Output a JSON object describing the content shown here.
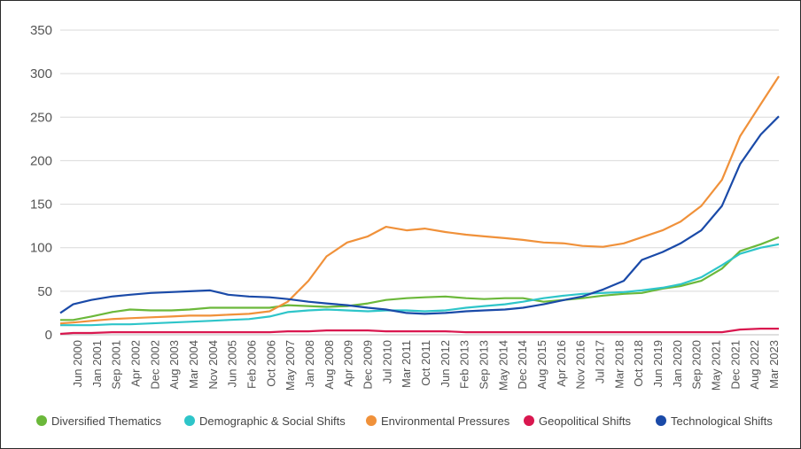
{
  "chart_data": {
    "type": "line",
    "title": "",
    "xlabel": "",
    "ylabel": "",
    "ylim": [
      0,
      350
    ],
    "yticks": [
      0,
      50,
      100,
      150,
      200,
      250,
      300,
      350
    ],
    "grid": "horizontal",
    "legend_position": "bottom",
    "x_tick_labels": [
      "Jun 2000",
      "Jan 2001",
      "Sep 2001",
      "Apr 2002",
      "Dec 2002",
      "Aug 2003",
      "Mar 2004",
      "Nov 2004",
      "Jun 2005",
      "Feb 2006",
      "Oct 2006",
      "May 2007",
      "Jan 2008",
      "Aug 2008",
      "Apr 2009",
      "Dec 2009",
      "Jul 2010",
      "Mar 2011",
      "Oct 2011",
      "Jun 2012",
      "Feb 2013",
      "Sep 2013",
      "May 2014",
      "Dec 2014",
      "Aug 2015",
      "Apr 2016",
      "Nov 2016",
      "Jul 2017",
      "Mar 2018",
      "Oct 2018",
      "Jun 2019",
      "Jan 2020",
      "Sep 2020",
      "May 2021",
      "Dec 2021",
      "Aug 2022",
      "Mar 2023"
    ],
    "x_range": [
      "2000-01",
      "2023-03"
    ],
    "series": [
      {
        "name": "Diversified Thematics",
        "color": "#6bb83a",
        "points": [
          [
            "2000-01",
            17
          ],
          [
            "2000-06",
            17
          ],
          [
            "2001-01",
            21
          ],
          [
            "2001-09",
            26
          ],
          [
            "2002-04",
            29
          ],
          [
            "2002-12",
            28
          ],
          [
            "2003-08",
            28
          ],
          [
            "2004-03",
            29
          ],
          [
            "2004-11",
            31
          ],
          [
            "2005-06",
            31
          ],
          [
            "2006-02",
            31
          ],
          [
            "2006-10",
            31
          ],
          [
            "2007-05",
            34
          ],
          [
            "2008-01",
            33
          ],
          [
            "2008-08",
            32
          ],
          [
            "2009-04",
            33
          ],
          [
            "2009-12",
            36
          ],
          [
            "2010-07",
            40
          ],
          [
            "2011-03",
            42
          ],
          [
            "2011-10",
            43
          ],
          [
            "2012-06",
            44
          ],
          [
            "2013-02",
            42
          ],
          [
            "2013-09",
            41
          ],
          [
            "2014-05",
            42
          ],
          [
            "2014-12",
            42
          ],
          [
            "2015-08",
            38
          ],
          [
            "2016-04",
            40
          ],
          [
            "2016-11",
            42
          ],
          [
            "2017-07",
            45
          ],
          [
            "2018-03",
            47
          ],
          [
            "2018-10",
            48
          ],
          [
            "2019-06",
            53
          ],
          [
            "2020-01",
            56
          ],
          [
            "2020-09",
            62
          ],
          [
            "2021-05",
            76
          ],
          [
            "2021-12",
            96
          ],
          [
            "2022-08",
            104
          ],
          [
            "2023-03",
            112
          ]
        ]
      },
      {
        "name": "Demographic & Social Shifts",
        "color": "#2ec5c9",
        "points": [
          [
            "2000-01",
            11
          ],
          [
            "2000-06",
            11
          ],
          [
            "2001-01",
            11
          ],
          [
            "2001-09",
            12
          ],
          [
            "2002-04",
            12
          ],
          [
            "2002-12",
            13
          ],
          [
            "2003-08",
            14
          ],
          [
            "2004-03",
            15
          ],
          [
            "2004-11",
            16
          ],
          [
            "2005-06",
            17
          ],
          [
            "2006-02",
            18
          ],
          [
            "2006-10",
            21
          ],
          [
            "2007-05",
            26
          ],
          [
            "2008-01",
            28
          ],
          [
            "2008-08",
            29
          ],
          [
            "2009-04",
            28
          ],
          [
            "2009-12",
            27
          ],
          [
            "2010-07",
            28
          ],
          [
            "2011-03",
            28
          ],
          [
            "2011-10",
            27
          ],
          [
            "2012-06",
            28
          ],
          [
            "2013-02",
            31
          ],
          [
            "2013-09",
            33
          ],
          [
            "2014-05",
            35
          ],
          [
            "2014-12",
            38
          ],
          [
            "2015-08",
            42
          ],
          [
            "2016-04",
            45
          ],
          [
            "2016-11",
            47
          ],
          [
            "2017-07",
            48
          ],
          [
            "2018-03",
            49
          ],
          [
            "2018-10",
            51
          ],
          [
            "2019-06",
            54
          ],
          [
            "2020-01",
            58
          ],
          [
            "2020-09",
            66
          ],
          [
            "2021-05",
            80
          ],
          [
            "2021-12",
            93
          ],
          [
            "2022-08",
            100
          ],
          [
            "2023-03",
            104
          ]
        ]
      },
      {
        "name": "Environmental Pressures",
        "color": "#f0913a",
        "points": [
          [
            "2000-01",
            13
          ],
          [
            "2000-06",
            14
          ],
          [
            "2001-01",
            16
          ],
          [
            "2001-09",
            18
          ],
          [
            "2002-04",
            19
          ],
          [
            "2002-12",
            20
          ],
          [
            "2003-08",
            21
          ],
          [
            "2004-03",
            22
          ],
          [
            "2004-11",
            22
          ],
          [
            "2005-06",
            23
          ],
          [
            "2006-02",
            24
          ],
          [
            "2006-10",
            27
          ],
          [
            "2007-05",
            38
          ],
          [
            "2008-01",
            62
          ],
          [
            "2008-08",
            90
          ],
          [
            "2009-04",
            106
          ],
          [
            "2009-12",
            113
          ],
          [
            "2010-07",
            124
          ],
          [
            "2011-03",
            120
          ],
          [
            "2011-10",
            122
          ],
          [
            "2012-06",
            118
          ],
          [
            "2013-02",
            115
          ],
          [
            "2013-09",
            113
          ],
          [
            "2014-05",
            111
          ],
          [
            "2014-12",
            109
          ],
          [
            "2015-08",
            106
          ],
          [
            "2016-04",
            105
          ],
          [
            "2016-11",
            102
          ],
          [
            "2017-07",
            101
          ],
          [
            "2018-03",
            105
          ],
          [
            "2018-10",
            112
          ],
          [
            "2019-06",
            120
          ],
          [
            "2020-01",
            130
          ],
          [
            "2020-09",
            148
          ],
          [
            "2021-05",
            178
          ],
          [
            "2021-12",
            228
          ],
          [
            "2022-08",
            265
          ],
          [
            "2023-03",
            297
          ]
        ]
      },
      {
        "name": "Geopolitical Shifts",
        "color": "#d9174f",
        "points": [
          [
            "2000-01",
            1
          ],
          [
            "2000-06",
            2
          ],
          [
            "2001-01",
            2
          ],
          [
            "2001-09",
            3
          ],
          [
            "2002-04",
            3
          ],
          [
            "2002-12",
            3
          ],
          [
            "2003-08",
            3
          ],
          [
            "2004-03",
            3
          ],
          [
            "2004-11",
            3
          ],
          [
            "2005-06",
            3
          ],
          [
            "2006-02",
            3
          ],
          [
            "2006-10",
            3
          ],
          [
            "2007-05",
            4
          ],
          [
            "2008-01",
            4
          ],
          [
            "2008-08",
            5
          ],
          [
            "2009-04",
            5
          ],
          [
            "2009-12",
            5
          ],
          [
            "2010-07",
            4
          ],
          [
            "2011-03",
            4
          ],
          [
            "2011-10",
            4
          ],
          [
            "2012-06",
            4
          ],
          [
            "2013-02",
            3
          ],
          [
            "2013-09",
            3
          ],
          [
            "2014-05",
            3
          ],
          [
            "2014-12",
            3
          ],
          [
            "2015-08",
            3
          ],
          [
            "2016-04",
            3
          ],
          [
            "2016-11",
            3
          ],
          [
            "2017-07",
            3
          ],
          [
            "2018-03",
            3
          ],
          [
            "2018-10",
            3
          ],
          [
            "2019-06",
            3
          ],
          [
            "2020-01",
            3
          ],
          [
            "2020-09",
            3
          ],
          [
            "2021-05",
            3
          ],
          [
            "2021-12",
            6
          ],
          [
            "2022-08",
            7
          ],
          [
            "2023-03",
            7
          ]
        ]
      },
      {
        "name": "Technological Shifts",
        "color": "#1a4aa8",
        "points": [
          [
            "2000-01",
            25
          ],
          [
            "2000-06",
            35
          ],
          [
            "2001-01",
            40
          ],
          [
            "2001-09",
            44
          ],
          [
            "2002-04",
            46
          ],
          [
            "2002-12",
            48
          ],
          [
            "2003-08",
            49
          ],
          [
            "2004-03",
            50
          ],
          [
            "2004-11",
            51
          ],
          [
            "2005-06",
            46
          ],
          [
            "2006-02",
            44
          ],
          [
            "2006-10",
            43
          ],
          [
            "2007-05",
            41
          ],
          [
            "2008-01",
            38
          ],
          [
            "2008-08",
            36
          ],
          [
            "2009-04",
            34
          ],
          [
            "2009-12",
            31
          ],
          [
            "2010-07",
            29
          ],
          [
            "2011-03",
            25
          ],
          [
            "2011-10",
            24
          ],
          [
            "2012-06",
            25
          ],
          [
            "2013-02",
            27
          ],
          [
            "2013-09",
            28
          ],
          [
            "2014-05",
            29
          ],
          [
            "2014-12",
            31
          ],
          [
            "2015-08",
            35
          ],
          [
            "2016-04",
            40
          ],
          [
            "2016-11",
            44
          ],
          [
            "2017-07",
            52
          ],
          [
            "2018-03",
            62
          ],
          [
            "2018-10",
            86
          ],
          [
            "2019-06",
            95
          ],
          [
            "2020-01",
            105
          ],
          [
            "2020-09",
            120
          ],
          [
            "2021-05",
            148
          ],
          [
            "2021-12",
            196
          ],
          [
            "2022-08",
            230
          ],
          [
            "2023-03",
            251
          ]
        ]
      }
    ]
  }
}
